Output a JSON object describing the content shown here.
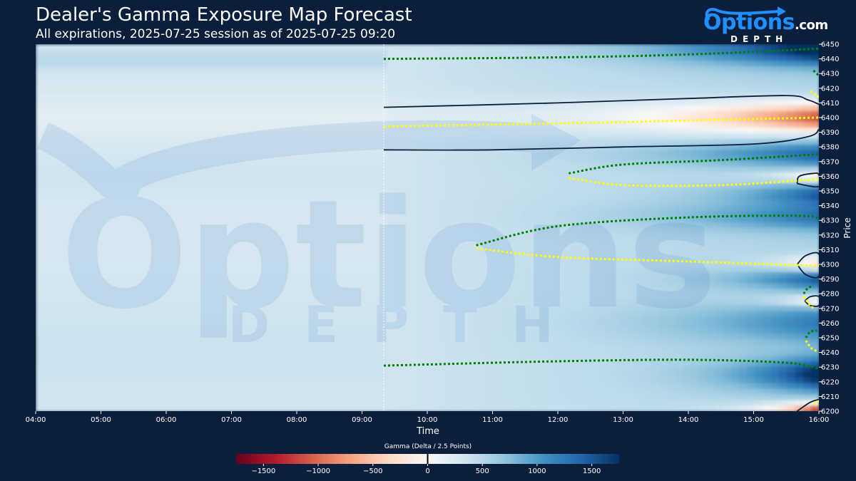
{
  "title": "Dealer's Gamma Exposure Map Forecast",
  "subtitle": "All expirations, 2025-07-25 session as of 2025-07-25 09:20",
  "logo": {
    "brand_main": "ptions",
    "brand_o": "O",
    "brand_suffix": ".com",
    "brand_sub": "DEPTH"
  },
  "watermark": {
    "main": "Options",
    "sub": "DEPTH"
  },
  "chart_data": {
    "type": "heatmap",
    "xlabel": "Time",
    "ylabel": "Price",
    "x_ticks": [
      "04:00",
      "05:00",
      "06:00",
      "07:00",
      "08:00",
      "09:00",
      "10:00",
      "11:00",
      "12:00",
      "13:00",
      "14:00",
      "15:00",
      "16:00"
    ],
    "y_ticks": [
      6200,
      6210,
      6220,
      6230,
      6240,
      6250,
      6260,
      6270,
      6280,
      6290,
      6300,
      6310,
      6320,
      6330,
      6340,
      6350,
      6360,
      6370,
      6380,
      6390,
      6400,
      6410,
      6420,
      6430,
      6440,
      6450
    ],
    "xlim": [
      "04:00",
      "16:00"
    ],
    "ylim": [
      6200,
      6450
    ],
    "as_of_time": "09:20",
    "colorbar": {
      "label": "Gamma (Delta / 2.5 Points)",
      "min": -1750,
      "max": 1750,
      "ticks": [
        -1500,
        -1000,
        -500,
        0,
        500,
        1000,
        1500
      ],
      "tick_labels": [
        "−1500",
        "−1000",
        "−500",
        "0",
        "500",
        "1000",
        "1500"
      ],
      "negative_color": "#67001f",
      "positive_color": "#053061"
    },
    "negative_gamma_region": {
      "price_range": [
        6380,
        6410
      ],
      "peak_price": 6400,
      "peak_time": "15:30",
      "peak_value": -1700
    },
    "contours": [
      {
        "name": "zero-gamma-upper",
        "color": "#0b1f3d",
        "points": [
          [
            "09:20",
            6407
          ],
          [
            "12:00",
            6410
          ],
          [
            "14:00",
            6413
          ],
          [
            "15:30",
            6415
          ],
          [
            "15:50",
            6412
          ],
          [
            "16:00",
            6409
          ]
        ]
      },
      {
        "name": "zero-gamma-lower",
        "color": "#0b1f3d",
        "points": [
          [
            "09:20",
            6378
          ],
          [
            "11:00",
            6378
          ],
          [
            "13:00",
            6380
          ],
          [
            "15:00",
            6382
          ],
          [
            "15:50",
            6387
          ],
          [
            "16:00",
            6392
          ]
        ]
      },
      {
        "name": "zero-gamma-6360",
        "color": "#0b1f3d",
        "points": [
          [
            "15:40",
            6355
          ],
          [
            "15:42",
            6360
          ],
          [
            "15:55",
            6362
          ],
          [
            "16:00",
            6361
          ],
          [
            "16:00",
            6353
          ],
          [
            "15:40",
            6355
          ]
        ]
      },
      {
        "name": "zero-gamma-6300",
        "color": "#0b1f3d",
        "points": [
          [
            "15:40",
            6300
          ],
          [
            "15:48",
            6306
          ],
          [
            "16:00",
            6307
          ],
          [
            "16:00",
            6292
          ],
          [
            "15:48",
            6293
          ],
          [
            "15:40",
            6300
          ]
        ]
      },
      {
        "name": "zero-gamma-6275",
        "color": "#0b1f3d",
        "points": [
          [
            "15:47",
            6275
          ],
          [
            "15:52",
            6278
          ],
          [
            "16:00",
            6278
          ],
          [
            "16:00",
            6272
          ],
          [
            "15:52",
            6272
          ],
          [
            "15:47",
            6275
          ]
        ]
      },
      {
        "name": "zero-gamma-6200",
        "color": "#0b1f3d",
        "points": [
          [
            "15:40",
            6200
          ],
          [
            "15:52",
            6206
          ],
          [
            "16:00",
            6208
          ]
        ]
      }
    ],
    "expected_levels": [
      {
        "name": "green-6440",
        "color": "#008000",
        "points": [
          [
            "09:20",
            6440
          ],
          [
            "12:00",
            6441
          ],
          [
            "14:00",
            6443
          ],
          [
            "16:00",
            6447
          ]
        ]
      },
      {
        "name": "green-6430",
        "color": "#008000",
        "points": [
          [
            "15:55",
            6432
          ],
          [
            "15:58",
            6430
          ],
          [
            "16:00",
            6428
          ]
        ]
      },
      {
        "name": "yellow-6418",
        "color": "#ffff00",
        "points": [
          [
            "15:52",
            6418
          ],
          [
            "15:56",
            6416
          ],
          [
            "16:00",
            6414
          ]
        ]
      },
      {
        "name": "yellow-6400",
        "color": "#ffff00",
        "points": [
          [
            "09:20",
            6394
          ],
          [
            "12:00",
            6396
          ],
          [
            "14:00",
            6398
          ],
          [
            "16:00",
            6400
          ]
        ]
      },
      {
        "name": "green-6375",
        "color": "#008000",
        "points": [
          [
            "12:10",
            6362
          ],
          [
            "13:00",
            6368
          ],
          [
            "14:30",
            6371
          ],
          [
            "16:00",
            6375
          ]
        ]
      },
      {
        "name": "yellow-6360",
        "color": "#ffff00",
        "points": [
          [
            "12:10",
            6359
          ],
          [
            "13:00",
            6354
          ],
          [
            "14:30",
            6354
          ],
          [
            "16:00",
            6358
          ]
        ]
      },
      {
        "name": "green-6333",
        "color": "#008000",
        "points": [
          [
            "10:45",
            6313
          ],
          [
            "12:00",
            6326
          ],
          [
            "14:00",
            6332
          ],
          [
            "15:45",
            6333
          ],
          [
            "16:00",
            6330
          ]
        ]
      },
      {
        "name": "yellow-6300",
        "color": "#ffff00",
        "points": [
          [
            "10:45",
            6311
          ],
          [
            "12:00",
            6305
          ],
          [
            "14:00",
            6302
          ],
          [
            "16:00",
            6299
          ]
        ]
      },
      {
        "name": "green-6285",
        "color": "#008000",
        "points": [
          [
            "15:46",
            6280
          ],
          [
            "15:50",
            6284
          ],
          [
            "15:55",
            6285
          ]
        ]
      },
      {
        "name": "yellow-6275",
        "color": "#ffff00",
        "points": [
          [
            "15:46",
            6278
          ],
          [
            "15:52",
            6272
          ],
          [
            "15:56",
            6270
          ]
        ]
      },
      {
        "name": "green-6255",
        "color": "#008000",
        "points": [
          [
            "15:48",
            6250
          ],
          [
            "15:52",
            6254
          ],
          [
            "15:58",
            6255
          ]
        ]
      },
      {
        "name": "yellow-6245",
        "color": "#ffff00",
        "points": [
          [
            "15:48",
            6248
          ],
          [
            "15:53",
            6243
          ],
          [
            "15:58",
            6241
          ]
        ]
      },
      {
        "name": "green-6231",
        "color": "#008000",
        "points": [
          [
            "09:20",
            6231
          ],
          [
            "12:00",
            6234
          ],
          [
            "14:00",
            6235
          ],
          [
            "15:30",
            6233
          ],
          [
            "16:00",
            6229
          ]
        ]
      },
      {
        "name": "yellow-6205",
        "color": "#ffff00",
        "points": [
          [
            "15:55",
            6205
          ],
          [
            "16:00",
            6207
          ]
        ]
      }
    ]
  }
}
